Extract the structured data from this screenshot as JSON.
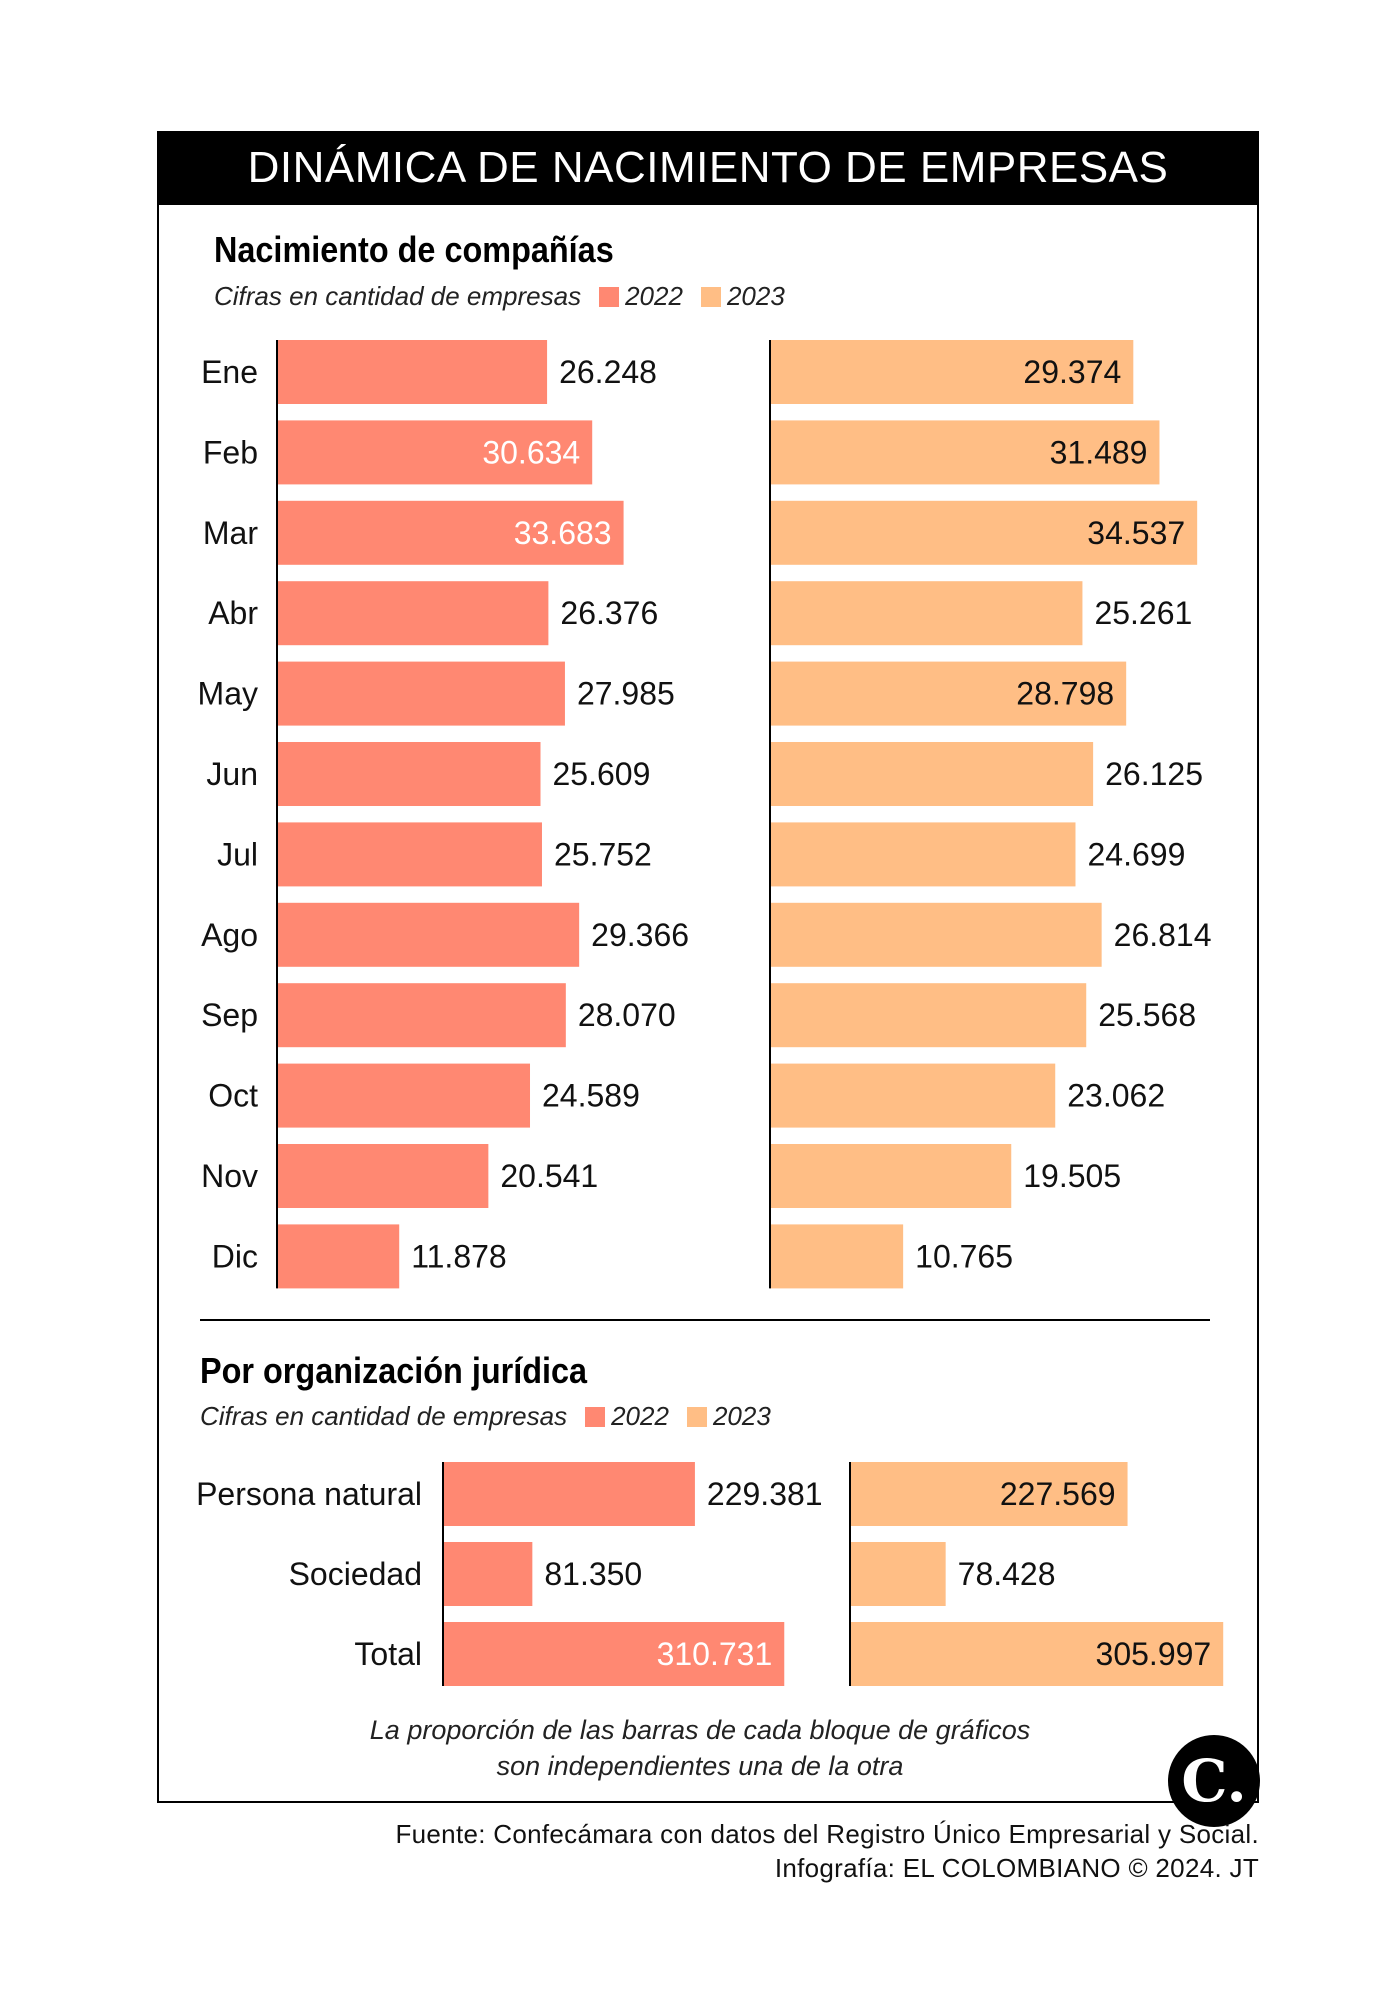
{
  "header": {
    "title": "DINÁMICA DE NACIMIENTO DE EMPRESAS"
  },
  "colors": {
    "c2022": "#FF8872",
    "c2023": "#FFBE85",
    "axis": "#000000"
  },
  "section1": {
    "title": "Nacimiento de compañías",
    "subtitle": "Cifras en cantidad de empresas",
    "legend_2022": "2022",
    "legend_2023": "2023"
  },
  "section2": {
    "title": "Por organización jurídica",
    "subtitle": "Cifras en cantidad de empresas",
    "legend_2022": "2022",
    "legend_2023": "2023"
  },
  "chart_data": [
    {
      "type": "bar",
      "orientation": "horizontal",
      "title": "Nacimiento de compañías",
      "subtitle": "Cifras en cantidad de empresas",
      "categories": [
        "Ene",
        "Feb",
        "Mar",
        "Abr",
        "May",
        "Jun",
        "Jul",
        "Ago",
        "Sep",
        "Oct",
        "Nov",
        "Dic"
      ],
      "series": [
        {
          "name": "2022",
          "values": [
            26248,
            30634,
            33683,
            26376,
            27985,
            25609,
            25752,
            29366,
            28070,
            24589,
            20541,
            11878
          ],
          "labels": [
            "26.248",
            "30.634",
            "33.683",
            "26.376",
            "27.985",
            "25.609",
            "25.752",
            "29.366",
            "28.070",
            "24.589",
            "20.541",
            "11.878"
          ]
        },
        {
          "name": "2023",
          "values": [
            29374,
            31489,
            34537,
            25261,
            28798,
            26125,
            24699,
            26814,
            25568,
            23062,
            19505,
            10765
          ],
          "labels": [
            "29.374",
            "31.489",
            "34.537",
            "25.261",
            "28.798",
            "26.125",
            "24.699",
            "26.814",
            "25.568",
            "23.062",
            "19.505",
            "10.765"
          ]
        }
      ],
      "label_inside": {
        "2022": [
          false,
          true,
          true,
          false,
          false,
          false,
          false,
          false,
          false,
          false,
          false,
          false
        ],
        "2023": [
          true,
          true,
          true,
          false,
          true,
          false,
          false,
          false,
          false,
          false,
          false,
          false
        ]
      },
      "xlim": [
        0,
        38000
      ]
    },
    {
      "type": "bar",
      "orientation": "horizontal",
      "title": "Por organización jurídica",
      "subtitle": "Cifras en cantidad de empresas",
      "categories": [
        "Persona natural",
        "Sociedad",
        "Total"
      ],
      "series": [
        {
          "name": "2022",
          "values": [
            229381,
            81350,
            310731
          ],
          "labels": [
            "229.381",
            "81.350",
            "310.731"
          ]
        },
        {
          "name": "2023",
          "values": [
            227569,
            78428,
            305997
          ],
          "labels": [
            "227.569",
            "78.428",
            "305.997"
          ]
        }
      ],
      "label_inside": {
        "2022": [
          false,
          false,
          true
        ],
        "2023": [
          true,
          false,
          true
        ]
      },
      "xlim": [
        0,
        346000
      ]
    }
  ],
  "note": {
    "line1": "La proporción de las barras de cada bloque de gráficos",
    "line2": "son independientes una de la otra"
  },
  "logo": {
    "text": "C."
  },
  "footer": {
    "line1": "Fuente: Confecámara con datos del Registro Único Empresarial y Social.",
    "line2": "Infografía: EL COLOMBIANO © 2024. JT"
  }
}
